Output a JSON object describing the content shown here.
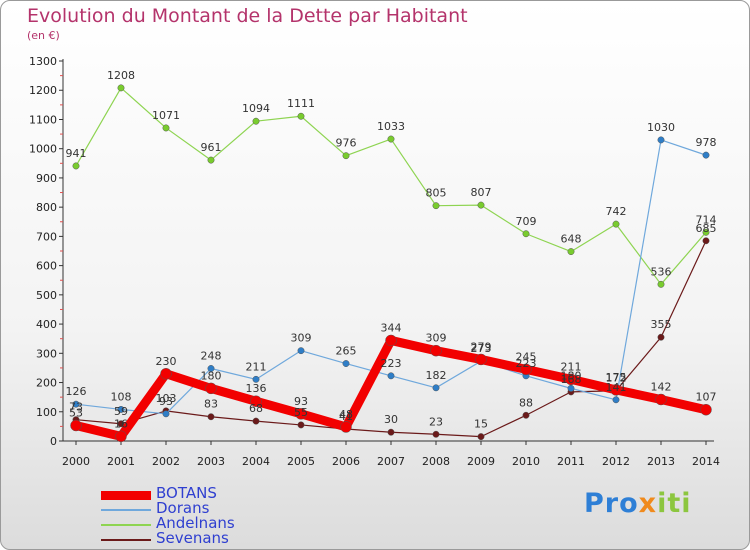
{
  "title": "Evolution du Montant de la Dette par Habitant",
  "unit": "(en €)",
  "logo": {
    "part1": "Pro",
    "part2": "x",
    "part3": "iti"
  },
  "chart_data": {
    "type": "line",
    "title": "Evolution du Montant de la Dette par Habitant",
    "ylabel": "(en €)",
    "ylim": [
      0,
      1300
    ],
    "yticks": [
      0,
      100,
      200,
      300,
      400,
      500,
      600,
      700,
      800,
      900,
      1000,
      1100,
      1200,
      1300
    ],
    "grid": false,
    "legend_position": "bottom-left",
    "x": [
      "2000",
      "2001",
      "2002",
      "2003",
      "2004",
      "2005",
      "2006",
      "2007",
      "2008",
      "2009",
      "2010",
      "2011",
      "2012",
      "2013",
      "2014"
    ],
    "series": [
      {
        "name": "Sevenans",
        "color": "#6b1a1a",
        "marker": "#6b1a1a",
        "values": [
          73,
          59,
          103,
          83,
          68,
          55,
          41,
          30,
          23,
          15,
          88,
          168,
          172,
          355,
          685
        ]
      },
      {
        "name": "Andelnans",
        "color": "#8ed451",
        "marker": "#79cc2e",
        "values": [
          941,
          1208,
          1071,
          961,
          1094,
          1111,
          976,
          1033,
          805,
          807,
          709,
          648,
          742,
          536,
          714
        ]
      },
      {
        "name": "Dorans",
        "color": "#6fa8dc",
        "marker": "#2f7ec7",
        "values": [
          126,
          108,
          93,
          248,
          211,
          309,
          265,
          223,
          182,
          273,
          223,
          180,
          141,
          1030,
          978
        ]
      },
      {
        "name": "BOTANS",
        "color": "#f20000",
        "marker": "#f20000",
        "values": [
          53,
          16,
          230,
          180,
          136,
          93,
          48,
          344,
          309,
          279,
          245,
          211,
          175,
          142,
          107
        ]
      }
    ],
    "legend_order": [
      "BOTANS",
      "Dorans",
      "Andelnans",
      "Sevenans"
    ]
  }
}
